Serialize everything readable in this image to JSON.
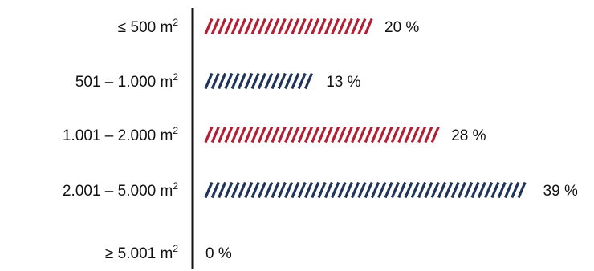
{
  "chart_data": {
    "type": "bar",
    "orientation": "horizontal",
    "title": "",
    "xlabel": "",
    "ylabel": "",
    "grid": false,
    "legend": "none",
    "xlim": [
      0,
      39
    ],
    "categories": [
      "≤ 500 m²",
      "501 – 1.000 m²",
      "1.001 – 2.000 m²",
      "2.001 – 5.000 m²",
      "≥ 5.001 m²"
    ],
    "category_parts": [
      {
        "base": "≤ 500 m",
        "sup": "2"
      },
      {
        "base": "501 – 1.000 m",
        "sup": "2"
      },
      {
        "base": "1.001 – 2.000 m",
        "sup": "2"
      },
      {
        "base": "2.001 – 5.000 m",
        "sup": "2"
      },
      {
        "base": "≥ 5.001 m",
        "sup": "2"
      }
    ],
    "values": [
      20,
      13,
      28,
      39,
      0
    ],
    "value_labels": [
      "20 %",
      "13 %",
      "28 %",
      "39 %",
      "0 %"
    ],
    "bar_colors": [
      "#b51f33",
      "#1f3458",
      "#b51f33",
      "#1f3458",
      "#1f3458"
    ],
    "bar_style": "hatched-diagonal-stripes",
    "axis_color": "#111111"
  }
}
